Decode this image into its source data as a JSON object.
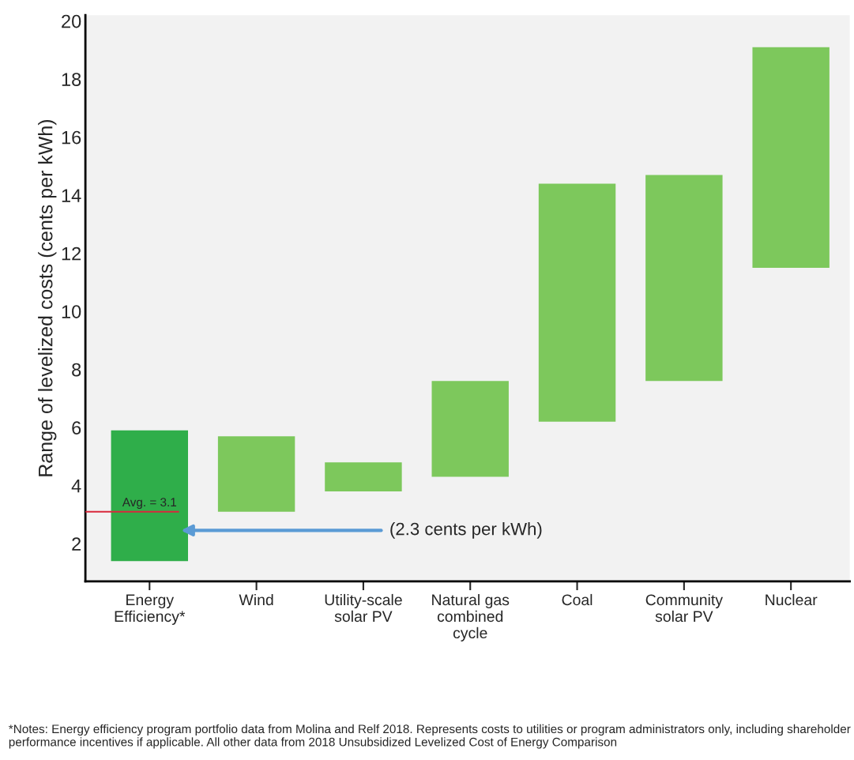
{
  "chart_data": {
    "type": "bar",
    "ylabel": "Range of levelized costs (cents per kWh)",
    "categories": [
      "Energy\nEfficiency*",
      "Wind",
      "Utility-scale\nsolar PV",
      "Natural gas\ncombined\ncycle",
      "Coal",
      "Community\nsolar PV",
      "Nuclear"
    ],
    "base": [
      1.4,
      3.1,
      3.8,
      4.3,
      6.2,
      7.6,
      11.5
    ],
    "values": [
      4.5,
      2.6,
      1.0,
      3.3,
      8.2,
      7.1,
      7.6
    ],
    "colors": [
      "#2fae4a",
      "#7dc85c",
      "#7dc85c",
      "#7dc85c",
      "#7dc85c",
      "#7dc85c",
      "#7dc85c"
    ],
    "ylim": [
      0.7,
      20.2
    ],
    "yticks": [
      2,
      4,
      6,
      8,
      10,
      12,
      14,
      16,
      18,
      20
    ],
    "ref_lines": [
      {
        "axis": "y",
        "value": 3.1,
        "label": "Avg. = 3.1",
        "color": "#d9283c"
      }
    ],
    "annotations": [
      "(2.3 cents per kWh)",
      "*Notes: Energy efficiency program portfolio data from Molina and Relf 2018. Represents costs to utilities or program administrators only, including shareholder performance incentives if applicable. All other data from 2018 Unsubsidized Levelized Cost of Energy Comparison"
    ],
    "grid": false,
    "legend": false
  }
}
